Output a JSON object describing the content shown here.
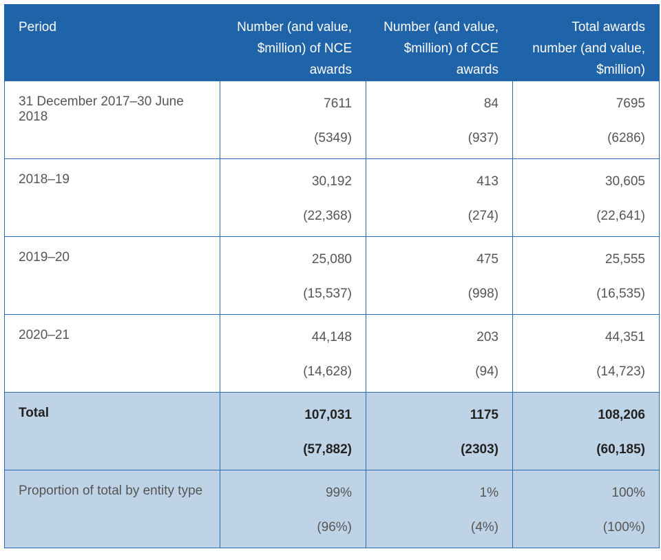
{
  "table": {
    "headers": {
      "period": "Period",
      "nce": "Number (and value, $million) of NCE awards",
      "cce": "Number (and value, $million) of CCE awards",
      "total": "Total awards number (and value, $million)"
    },
    "rows": [
      {
        "period": "31 December 2017–30 June 2018",
        "nce_number": "7611",
        "nce_value": "(5349)",
        "cce_number": "84",
        "cce_value": "(937)",
        "total_number": "7695",
        "total_value": "(6286)"
      },
      {
        "period": "2018–19",
        "nce_number": "30,192",
        "nce_value": "(22,368)",
        "cce_number": "413",
        "cce_value": "(274)",
        "total_number": "30,605",
        "total_value": "(22,641)"
      },
      {
        "period": "2019–20",
        "nce_number": "25,080",
        "nce_value": "(15,537)",
        "cce_number": "475",
        "cce_value": "(998)",
        "total_number": "25,555",
        "total_value": "(16,535)"
      },
      {
        "period": "2020–21",
        "nce_number": "44,148",
        "nce_value": "(14,628)",
        "cce_number": "203",
        "cce_value": "(94)",
        "total_number": "44,351",
        "total_value": "(14,723)"
      }
    ],
    "total_row": {
      "period": "Total",
      "nce_number": "107,031",
      "nce_value": "(57,882)",
      "cce_number": "1175",
      "cce_value": "(2303)",
      "total_number": "108,206",
      "total_value": "(60,185)"
    },
    "proportion_row": {
      "period": "Proportion of total by entity type",
      "nce_number": "99%",
      "nce_value": "(96%)",
      "cce_number": "1%",
      "cce_value": "(4%)",
      "total_number": "100%",
      "total_value": "(100%)"
    }
  },
  "colors": {
    "header_bg": "#1f63a8",
    "border": "#2a69b3",
    "highlight_bg": "#bfd3e7"
  }
}
